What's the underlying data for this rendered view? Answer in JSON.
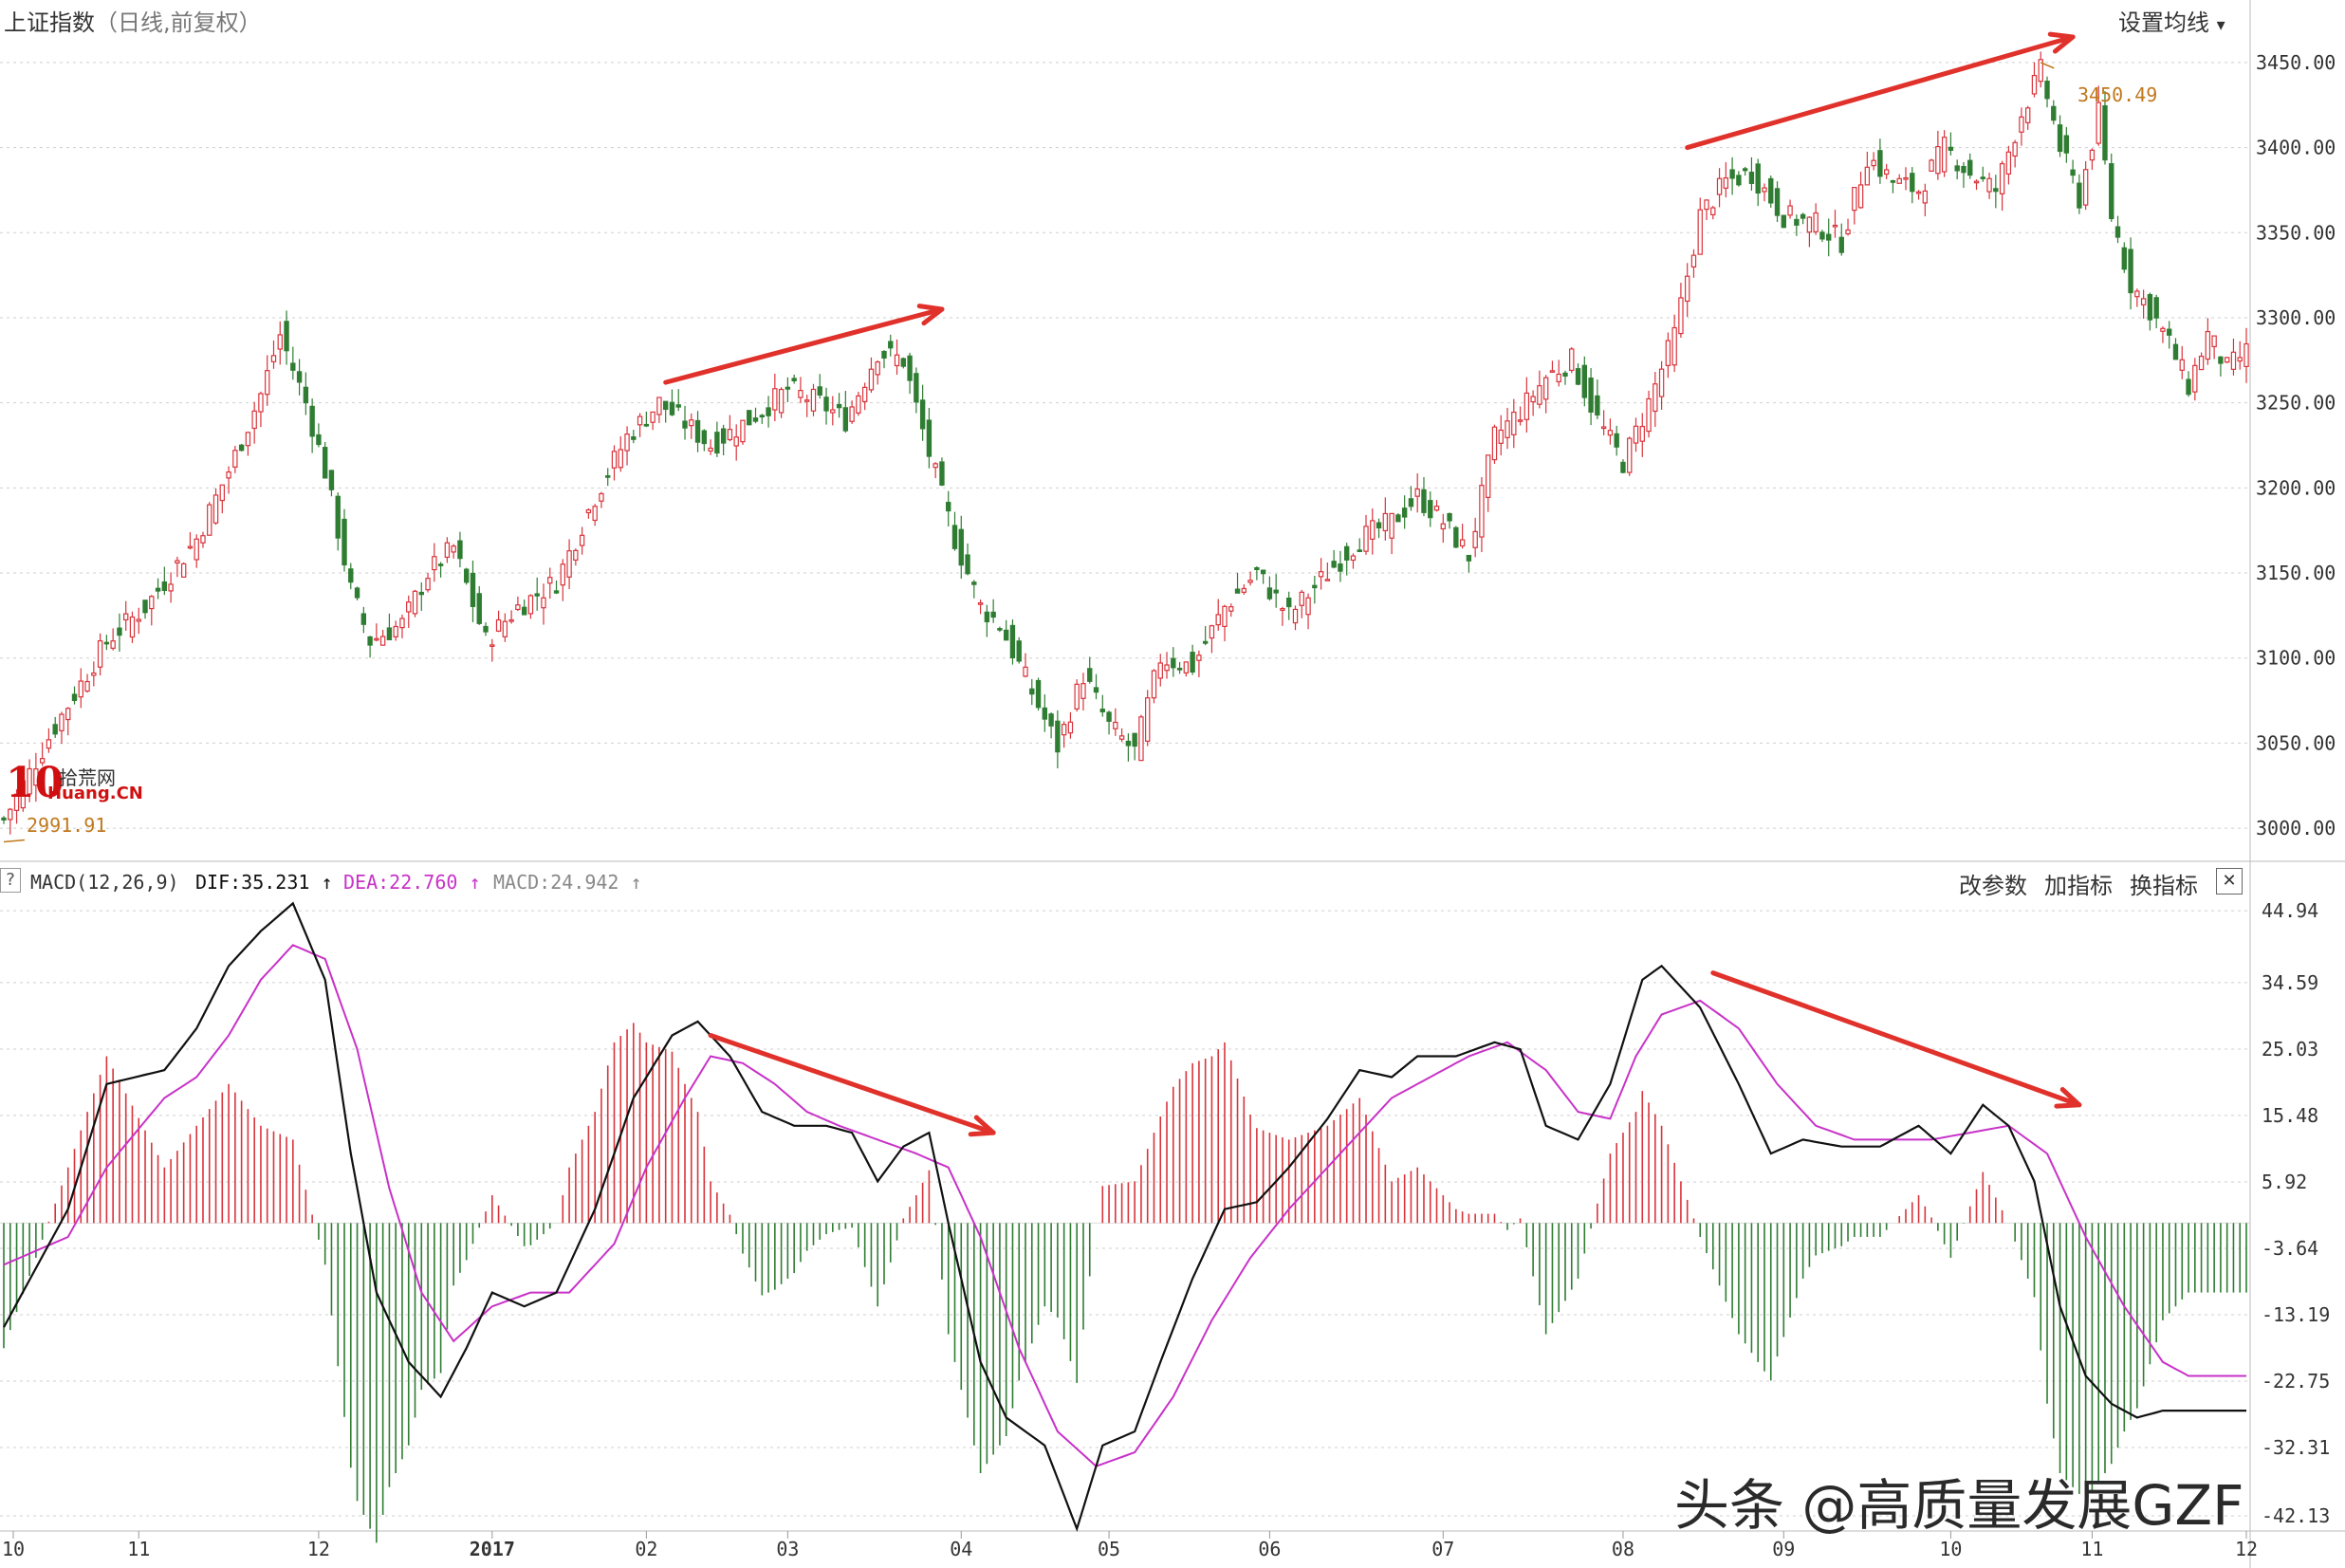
{
  "header": {
    "title": "上证指数",
    "subtitle": "（日线,前复权）",
    "ma_button": "设置均线",
    "ma_caret": "▾"
  },
  "macd_header": {
    "help": "?",
    "name": "MACD(12,26,9)",
    "dif_label": "DIF:35.231",
    "dea_label": "DEA:22.760",
    "macd_label": "MACD:24.942",
    "arrow": "↑",
    "btn_params": "改参数",
    "btn_add": "加指标",
    "btn_switch": "换指标",
    "btn_close": "✕"
  },
  "annotations": {
    "high_label": "3450.49",
    "low_label": "2991.91"
  },
  "logo": {
    "num": "10",
    "name": "拾荒网",
    "domain": "Huang.CN"
  },
  "watermark": "头条 @高质量发展GZF",
  "colors": {
    "up": "#d9343b",
    "down": "#2f7d32",
    "dif": "#111111",
    "dea": "#c832c8",
    "arrow": "#e0312b",
    "grid": "#cfcfcf"
  },
  "chart_data": [
    {
      "type": "candlestick",
      "title": "上证指数（日线,前复权）",
      "yticks": [
        3000,
        3050,
        3100,
        3150,
        3200,
        3250,
        3300,
        3350,
        3400,
        3450
      ],
      "ylim": [
        2985,
        3470
      ],
      "xticks": [
        "10",
        "11",
        "12",
        "2017",
        "02",
        "03",
        "04",
        "05",
        "06",
        "07",
        "08",
        "09",
        "10",
        "11",
        "12"
      ],
      "highest": 3450.49,
      "lowest": 2991.91,
      "close_path": [
        [
          0,
          3005
        ],
        [
          8,
          3060
        ],
        [
          16,
          3110
        ],
        [
          22,
          3130
        ],
        [
          30,
          3170
        ],
        [
          35,
          3210
        ],
        [
          40,
          3255
        ],
        [
          43,
          3290
        ],
        [
          47,
          3250
        ],
        [
          50,
          3210
        ],
        [
          54,
          3140
        ],
        [
          57,
          3110
        ],
        [
          62,
          3120
        ],
        [
          66,
          3150
        ],
        [
          70,
          3165
        ],
        [
          75,
          3110
        ],
        [
          80,
          3130
        ],
        [
          86,
          3145
        ],
        [
          92,
          3195
        ],
        [
          97,
          3230
        ],
        [
          102,
          3250
        ],
        [
          106,
          3238
        ],
        [
          110,
          3225
        ],
        [
          116,
          3240
        ],
        [
          122,
          3258
        ],
        [
          127,
          3250
        ],
        [
          131,
          3240
        ],
        [
          136,
          3280
        ],
        [
          140,
          3275
        ],
        [
          144,
          3220
        ],
        [
          148,
          3170
        ],
        [
          152,
          3130
        ],
        [
          155,
          3120
        ],
        [
          160,
          3080
        ],
        [
          164,
          3048
        ],
        [
          168,
          3090
        ],
        [
          172,
          3060
        ],
        [
          176,
          3045
        ],
        [
          180,
          3100
        ],
        [
          185,
          3095
        ],
        [
          190,
          3130
        ],
        [
          195,
          3150
        ],
        [
          200,
          3125
        ],
        [
          206,
          3150
        ],
        [
          211,
          3170
        ],
        [
          216,
          3180
        ],
        [
          220,
          3195
        ],
        [
          224,
          3180
        ],
        [
          228,
          3160
        ],
        [
          232,
          3230
        ],
        [
          236,
          3245
        ],
        [
          240,
          3265
        ],
        [
          244,
          3275
        ],
        [
          248,
          3240
        ],
        [
          252,
          3215
        ],
        [
          256,
          3250
        ],
        [
          260,
          3290
        ],
        [
          264,
          3360
        ],
        [
          268,
          3380
        ],
        [
          272,
          3385
        ],
        [
          277,
          3360
        ],
        [
          282,
          3355
        ],
        [
          286,
          3345
        ],
        [
          290,
          3395
        ],
        [
          294,
          3380
        ],
        [
          298,
          3375
        ],
        [
          302,
          3400
        ],
        [
          306,
          3385
        ],
        [
          310,
          3375
        ],
        [
          314,
          3420
        ],
        [
          317,
          3445
        ],
        [
          320,
          3400
        ],
        [
          323,
          3370
        ],
        [
          326,
          3420
        ],
        [
          328,
          3360
        ],
        [
          331,
          3320
        ],
        [
          334,
          3305
        ],
        [
          337,
          3285
        ],
        [
          340,
          3260
        ],
        [
          343,
          3290
        ],
        [
          346,
          3270
        ],
        [
          349,
          3280
        ]
      ],
      "trend_arrows": [
        {
          "from": [
            "2016-12 end",
            3262
          ],
          "to": [
            "2017-03 mid",
            3305
          ]
        },
        {
          "from": [
            "2017-08 end",
            3400
          ],
          "to": [
            "2017-11 mid",
            3465
          ]
        }
      ]
    },
    {
      "type": "line+bar",
      "title": "MACD(12,26,9)",
      "series_names": [
        "DIF",
        "DEA",
        "MACD"
      ],
      "last_values": {
        "DIF": 35.231,
        "DEA": 22.76,
        "MACD": 24.942
      },
      "yticks": [
        44.94,
        34.59,
        25.03,
        15.48,
        5.92,
        -3.64,
        -13.19,
        -22.75,
        -32.31,
        -42.13
      ],
      "ylim": [
        -43.5,
        47
      ],
      "dif_path": [
        [
          0,
          -15
        ],
        [
          10,
          2
        ],
        [
          16,
          20
        ],
        [
          25,
          22
        ],
        [
          30,
          28
        ],
        [
          35,
          37
        ],
        [
          40,
          42
        ],
        [
          45,
          46
        ],
        [
          50,
          35
        ],
        [
          54,
          10
        ],
        [
          58,
          -10
        ],
        [
          63,
          -20
        ],
        [
          68,
          -25
        ],
        [
          72,
          -18
        ],
        [
          76,
          -10
        ],
        [
          81,
          -12
        ],
        [
          86,
          -10
        ],
        [
          92,
          2
        ],
        [
          98,
          18
        ],
        [
          104,
          27
        ],
        [
          108,
          29
        ],
        [
          113,
          24
        ],
        [
          118,
          16
        ],
        [
          123,
          14
        ],
        [
          128,
          14
        ],
        [
          132,
          13
        ],
        [
          136,
          6
        ],
        [
          140,
          11
        ],
        [
          144,
          13
        ],
        [
          147,
          0
        ],
        [
          152,
          -20
        ],
        [
          156,
          -28
        ],
        [
          162,
          -32
        ],
        [
          167,
          -44
        ],
        [
          171,
          -32
        ],
        [
          176,
          -30
        ],
        [
          180,
          -20
        ],
        [
          185,
          -8
        ],
        [
          190,
          2
        ],
        [
          195,
          3
        ],
        [
          200,
          8
        ],
        [
          206,
          15
        ],
        [
          211,
          22
        ],
        [
          216,
          21
        ],
        [
          220,
          24
        ],
        [
          226,
          24
        ],
        [
          232,
          26
        ],
        [
          236,
          25
        ],
        [
          240,
          14
        ],
        [
          245,
          12
        ],
        [
          250,
          20
        ],
        [
          255,
          35
        ],
        [
          258,
          37
        ],
        [
          264,
          31
        ],
        [
          270,
          20
        ],
        [
          275,
          10
        ],
        [
          280,
          12
        ],
        [
          286,
          11
        ],
        [
          292,
          11
        ],
        [
          298,
          14
        ],
        [
          303,
          10
        ],
        [
          308,
          17
        ],
        [
          312,
          14
        ],
        [
          316,
          6
        ],
        [
          320,
          -12
        ],
        [
          324,
          -22
        ],
        [
          328,
          -26
        ],
        [
          332,
          -28
        ],
        [
          336,
          -27
        ],
        [
          340,
          -27
        ]
      ],
      "dea_path": [
        [
          0,
          -6
        ],
        [
          10,
          -2
        ],
        [
          16,
          8
        ],
        [
          25,
          18
        ],
        [
          30,
          21
        ],
        [
          35,
          27
        ],
        [
          40,
          35
        ],
        [
          45,
          40
        ],
        [
          50,
          38
        ],
        [
          55,
          25
        ],
        [
          60,
          5
        ],
        [
          65,
          -10
        ],
        [
          70,
          -17
        ],
        [
          76,
          -12
        ],
        [
          82,
          -10
        ],
        [
          88,
          -10
        ],
        [
          95,
          -3
        ],
        [
          100,
          8
        ],
        [
          106,
          18
        ],
        [
          110,
          24
        ],
        [
          115,
          23
        ],
        [
          120,
          20
        ],
        [
          125,
          16
        ],
        [
          130,
          14
        ],
        [
          136,
          12
        ],
        [
          142,
          10
        ],
        [
          147,
          8
        ],
        [
          152,
          -2
        ],
        [
          158,
          -18
        ],
        [
          164,
          -30
        ],
        [
          170,
          -35
        ],
        [
          176,
          -33
        ],
        [
          182,
          -25
        ],
        [
          188,
          -14
        ],
        [
          194,
          -5
        ],
        [
          200,
          2
        ],
        [
          206,
          8
        ],
        [
          212,
          14
        ],
        [
          216,
          18
        ],
        [
          222,
          21
        ],
        [
          228,
          24
        ],
        [
          234,
          26
        ],
        [
          240,
          22
        ],
        [
          245,
          16
        ],
        [
          250,
          15
        ],
        [
          254,
          24
        ],
        [
          258,
          30
        ],
        [
          264,
          32
        ],
        [
          270,
          28
        ],
        [
          276,
          20
        ],
        [
          282,
          14
        ],
        [
          288,
          12
        ],
        [
          294,
          12
        ],
        [
          300,
          12
        ],
        [
          306,
          13
        ],
        [
          312,
          14
        ],
        [
          318,
          10
        ],
        [
          324,
          -2
        ],
        [
          330,
          -12
        ],
        [
          336,
          -20
        ],
        [
          340,
          -22
        ]
      ],
      "trend_arrows": [
        {
          "from": [
            "2017-03 start",
            27
          ],
          "to": [
            "2017-04 end",
            13
          ]
        },
        {
          "from": [
            "2017-09 start",
            36
          ],
          "to": [
            "2017-11 end",
            17
          ]
        }
      ]
    }
  ]
}
